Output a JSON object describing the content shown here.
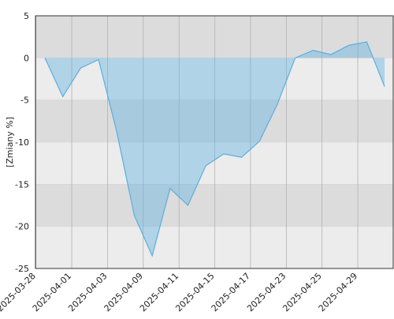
{
  "chart_data": {
    "type": "area",
    "y_label": "[Zmiany %]",
    "categories": [
      null,
      null,
      null,
      null,
      null,
      null,
      null,
      null,
      null,
      null,
      null,
      null,
      null,
      null,
      null,
      null,
      null,
      null,
      null,
      null
    ],
    "x_tick_labels": [
      "2025-03-28",
      "2025-04-01",
      "2025-04-03",
      "2025-04-09",
      "2025-04-11",
      "2025-04-15",
      "2025-04-17",
      "2025-04-23",
      "2025-04-25",
      "2025-04-29"
    ],
    "series": [
      {
        "color": "#5aaee0",
        "values": [
          0,
          -4.6,
          -1.2,
          -0.2,
          -8.6,
          -18.7,
          -23.5,
          -15.5,
          -17.5,
          -12.8,
          -11.4,
          -11.8,
          -9.9,
          -5.5,
          0.0,
          0.9,
          0.4,
          1.5,
          1.9,
          -3.4
        ]
      }
    ],
    "ylim": [
      -25,
      5
    ],
    "yticks": [
      5,
      0,
      -5,
      -10,
      -15,
      -20,
      -25
    ],
    "grid": true
  }
}
